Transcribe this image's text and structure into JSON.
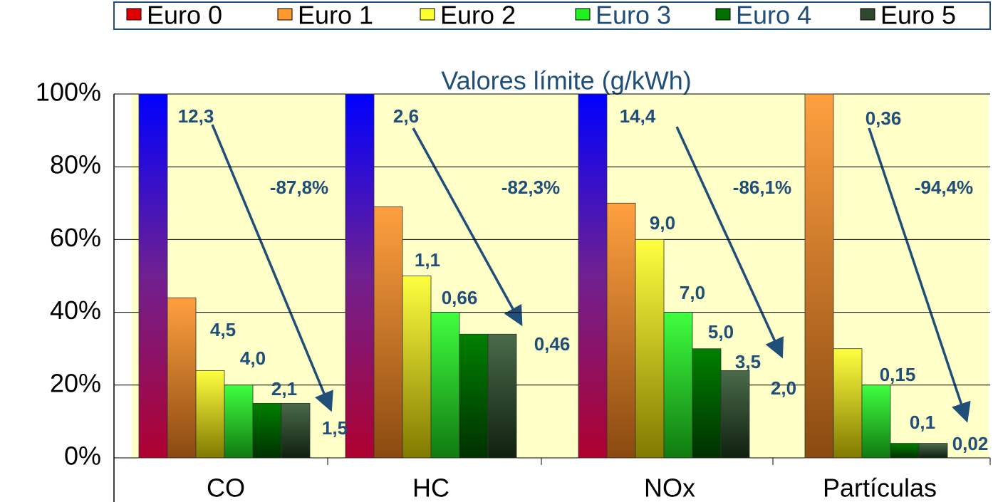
{
  "chart_data": {
    "type": "bar",
    "title": "Valores límite (g/kWh)",
    "categories": [
      "CO",
      "HC",
      "NOx",
      "Partículas"
    ],
    "series": [
      {
        "name": "Euro 0",
        "color": "#e00000",
        "text_color": "#000000",
        "values": [
          100,
          100,
          100,
          null
        ]
      },
      {
        "name": "Euro 1",
        "color": "#ff9a30",
        "text_color": "#000000",
        "values": [
          44,
          69,
          70,
          100
        ]
      },
      {
        "name": "Euro 2",
        "color": "#ffff30",
        "text_color": "#000000",
        "values": [
          24,
          50,
          60,
          30
        ]
      },
      {
        "name": "Euro 3",
        "color": "#20f020",
        "text_color": "#1f4e79",
        "values": [
          20,
          40,
          40,
          20
        ]
      },
      {
        "name": "Euro 4",
        "color": "#007000",
        "text_color": "#1f4e79",
        "values": [
          15,
          34,
          30,
          4
        ]
      },
      {
        "name": "Euro 5",
        "color": "#304830",
        "text_color": "#000000",
        "values": [
          15,
          34,
          24,
          4
        ]
      }
    ],
    "limits": [
      {
        "labels": [
          "12,3",
          "4,5",
          "4,0",
          "2,1",
          "1,5"
        ],
        "reduction": "-87,8%"
      },
      {
        "labels": [
          "2,6",
          "1,1",
          "0,66",
          "0,46"
        ],
        "reduction": "-82,3%"
      },
      {
        "labels": [
          "14,4",
          "9,0",
          "7,0",
          "5,0",
          "3,5",
          "2,0"
        ],
        "reduction": "-86,1%"
      },
      {
        "labels": [
          "0,36",
          "0,15",
          "0,1",
          "0,02"
        ],
        "reduction": "-94,4%"
      }
    ],
    "ylim": [
      0,
      100
    ],
    "yticks": [
      {
        "value": 0,
        "label": "0%"
      },
      {
        "value": 20,
        "label": "20%"
      },
      {
        "value": 40,
        "label": "40%"
      },
      {
        "value": 60,
        "label": "60%"
      },
      {
        "value": 80,
        "label": "80%"
      },
      {
        "value": 100,
        "label": "100%"
      }
    ],
    "grid": true
  }
}
